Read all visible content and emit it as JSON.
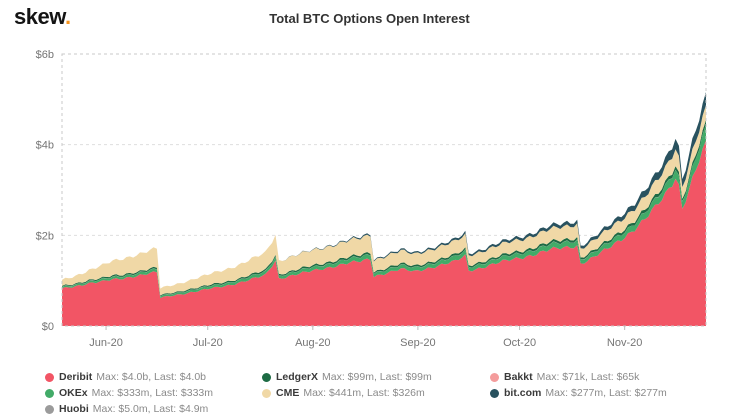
{
  "header": {
    "logo_text": "skew",
    "logo_dot": ".",
    "title": "Total BTC Options Open Interest"
  },
  "legend": {
    "items": [
      {
        "name": "Deribit",
        "color": "#f25565",
        "stats": "Max: $4.0b, Last: $4.0b"
      },
      {
        "name": "OKEx",
        "color": "#42ab68",
        "stats": "Max: $333m, Last: $333m"
      },
      {
        "name": "Huobi",
        "color": "#9b9b9b",
        "stats": "Max: $5.0m, Last: $4.9m"
      },
      {
        "name": "LedgerX",
        "color": "#1d6b44",
        "stats": "Max: $99m, Last: $99m"
      },
      {
        "name": "CME",
        "color": "#f0d8a6",
        "stats": "Max: $441m, Last: $326m"
      },
      {
        "name": "Bakkt",
        "color": "#f49c9c",
        "stats": "Max: $71k, Last: $65k"
      },
      {
        "name": "bit.com",
        "color": "#29525f",
        "stats": "Max: $277m, Last: $277m"
      }
    ]
  },
  "chart_data": {
    "type": "area",
    "stacked": true,
    "title": "Total BTC Options Open Interest",
    "unit": "USD billions",
    "x_note": "days since 2020-05-28, monthly expiry cliffs",
    "xlim": [
      0,
      190
    ],
    "ylim": [
      0,
      6
    ],
    "grid": "horizontal-dashed",
    "legend_position": "bottom",
    "y_ticks": [
      {
        "v": 0,
        "label": "$0"
      },
      {
        "v": 2,
        "label": "$2b"
      },
      {
        "v": 4,
        "label": "$4b"
      },
      {
        "v": 6,
        "label": "$6b"
      }
    ],
    "x_ticks": [
      {
        "v": 13,
        "label": "Jun-20"
      },
      {
        "v": 43,
        "label": "Jul-20"
      },
      {
        "v": 74,
        "label": "Aug-20"
      },
      {
        "v": 105,
        "label": "Sep-20"
      },
      {
        "v": 135,
        "label": "Oct-20"
      },
      {
        "v": 166,
        "label": "Nov-20"
      }
    ],
    "x": [
      0,
      4,
      8,
      12,
      15,
      18,
      21,
      25,
      28,
      29,
      33,
      37,
      41,
      45,
      49,
      53,
      57,
      60,
      63,
      64,
      68,
      72,
      76,
      80,
      84,
      88,
      91,
      92,
      96,
      100,
      104,
      108,
      112,
      116,
      119,
      120,
      124,
      128,
      132,
      136,
      140,
      144,
      148,
      152,
      153,
      157,
      161,
      165,
      169,
      172,
      175,
      178,
      181,
      182,
      183,
      185,
      187,
      189,
      190
    ],
    "series": [
      {
        "name": "Deribit",
        "color": "#f25565",
        "max": "$4.0b",
        "last": "$4.0b",
        "values": [
          0.82,
          0.88,
          0.95,
          0.98,
          1.02,
          1.05,
          1.1,
          1.15,
          1.18,
          0.62,
          0.68,
          0.73,
          0.78,
          0.84,
          0.9,
          0.97,
          1.05,
          1.12,
          1.45,
          1.05,
          1.12,
          1.18,
          1.25,
          1.32,
          1.38,
          1.42,
          1.48,
          1.1,
          1.18,
          1.25,
          1.2,
          1.28,
          1.35,
          1.42,
          1.55,
          1.22,
          1.3,
          1.38,
          1.45,
          1.52,
          1.6,
          1.68,
          1.72,
          1.78,
          1.38,
          1.52,
          1.7,
          1.92,
          2.15,
          2.35,
          2.6,
          2.9,
          3.3,
          3.1,
          2.62,
          3.0,
          3.45,
          3.8,
          4.0
        ]
      },
      {
        "name": "OKEx",
        "color": "#42ab68",
        "max": "$333m",
        "last": "$333m",
        "values": [
          0.03,
          0.035,
          0.04,
          0.045,
          0.05,
          0.05,
          0.055,
          0.06,
          0.06,
          0.035,
          0.04,
          0.045,
          0.05,
          0.05,
          0.055,
          0.06,
          0.065,
          0.07,
          0.08,
          0.06,
          0.065,
          0.07,
          0.075,
          0.08,
          0.085,
          0.09,
          0.095,
          0.07,
          0.075,
          0.08,
          0.08,
          0.085,
          0.09,
          0.095,
          0.1,
          0.08,
          0.085,
          0.09,
          0.095,
          0.1,
          0.105,
          0.11,
          0.115,
          0.12,
          0.09,
          0.1,
          0.11,
          0.12,
          0.13,
          0.14,
          0.15,
          0.17,
          0.2,
          0.19,
          0.16,
          0.2,
          0.25,
          0.3,
          0.333
        ]
      },
      {
        "name": "Huobi",
        "color": "#9b9b9b",
        "max": "$5.0m",
        "last": "$4.9m",
        "constant": 0.005
      },
      {
        "name": "LedgerX",
        "color": "#1d6b44",
        "max": "$99m",
        "last": "$99m",
        "values": [
          0.02,
          0.02,
          0.025,
          0.025,
          0.03,
          0.03,
          0.03,
          0.03,
          0.035,
          0.02,
          0.02,
          0.025,
          0.025,
          0.03,
          0.03,
          0.03,
          0.035,
          0.035,
          0.04,
          0.03,
          0.03,
          0.035,
          0.035,
          0.04,
          0.04,
          0.04,
          0.045,
          0.03,
          0.035,
          0.035,
          0.035,
          0.04,
          0.04,
          0.045,
          0.045,
          0.035,
          0.04,
          0.04,
          0.045,
          0.045,
          0.05,
          0.05,
          0.05,
          0.055,
          0.04,
          0.045,
          0.05,
          0.055,
          0.06,
          0.065,
          0.07,
          0.075,
          0.08,
          0.075,
          0.06,
          0.07,
          0.08,
          0.09,
          0.099
        ]
      },
      {
        "name": "CME",
        "color": "#f0d8a6",
        "max": "$441m",
        "last": "$326m",
        "values": [
          0.13,
          0.17,
          0.22,
          0.28,
          0.32,
          0.35,
          0.37,
          0.4,
          0.42,
          0.15,
          0.17,
          0.19,
          0.22,
          0.25,
          0.28,
          0.31,
          0.35,
          0.38,
          0.44,
          0.3,
          0.32,
          0.33,
          0.34,
          0.35,
          0.36,
          0.37,
          0.38,
          0.25,
          0.27,
          0.28,
          0.26,
          0.27,
          0.28,
          0.29,
          0.3,
          0.22,
          0.23,
          0.24,
          0.25,
          0.26,
          0.27,
          0.28,
          0.29,
          0.3,
          0.2,
          0.22,
          0.24,
          0.26,
          0.27,
          0.28,
          0.3,
          0.32,
          0.38,
          0.35,
          0.26,
          0.28,
          0.3,
          0.31,
          0.326
        ]
      },
      {
        "name": "Bakkt",
        "color": "#f49c9c",
        "max": "$71k",
        "last": "$65k",
        "constant": 0.0001
      },
      {
        "name": "bit.com",
        "color": "#29525f",
        "max": "$277m",
        "last": "$277m",
        "values": [
          0,
          0,
          0,
          0,
          0,
          0,
          0,
          0,
          0,
          0,
          0,
          0,
          0,
          0,
          0,
          0,
          0,
          0,
          0,
          0,
          0.005,
          0.006,
          0.01,
          0.015,
          0.02,
          0.025,
          0.03,
          0.02,
          0.025,
          0.03,
          0.03,
          0.035,
          0.04,
          0.045,
          0.05,
          0.04,
          0.045,
          0.05,
          0.055,
          0.06,
          0.065,
          0.07,
          0.075,
          0.08,
          0.06,
          0.07,
          0.08,
          0.1,
          0.12,
          0.14,
          0.16,
          0.19,
          0.23,
          0.22,
          0.18,
          0.21,
          0.24,
          0.26,
          0.277
        ]
      }
    ]
  }
}
